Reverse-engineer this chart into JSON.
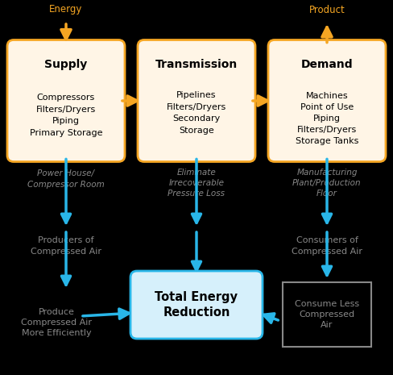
{
  "bg_color": "#000000",
  "orange_box_fill": "#FFF5E6",
  "orange_box_edge": "#F5A623",
  "blue_box_fill": "#D6F0FB",
  "blue_box_edge": "#29B6E8",
  "white_box_fill": "#000000",
  "white_box_edge": "#888888",
  "orange_arrow": "#F5A623",
  "blue_arrow": "#29B6E8",
  "text_gray": "#888888",
  "text_blue": "#29B6E8",
  "supply_title": "Supply",
  "supply_items": "Compressors\nFilters/Dryers\nPiping\nPrimary Storage",
  "transmission_title": "Transmission",
  "transmission_items": "Pipelines\nFilters/Dryers\nSecondary\nStorage",
  "demand_title": "Demand",
  "demand_items": "Machines\nPoint of Use\nPiping\nFilters/Dryers\nStorage Tanks",
  "total_energy_text": "Total Energy\nReduction",
  "label_energy": "Energy",
  "label_product": "Product",
  "label_powerhouse": "Power House/\nCompressor Room",
  "label_eliminate": "Eliminate\nIrrecoverable\nPressure Loss",
  "label_manufacturing": "Manufacturing\nPlant/Production\nFloor",
  "label_producers": "Producers of\nCompressed Air",
  "label_consumers": "Consumers of\nCompressed Air",
  "label_produce": "Produce\nCompressed Air\nMore Efficiently",
  "label_consume": "Consume Less\nCompressed\nAir"
}
